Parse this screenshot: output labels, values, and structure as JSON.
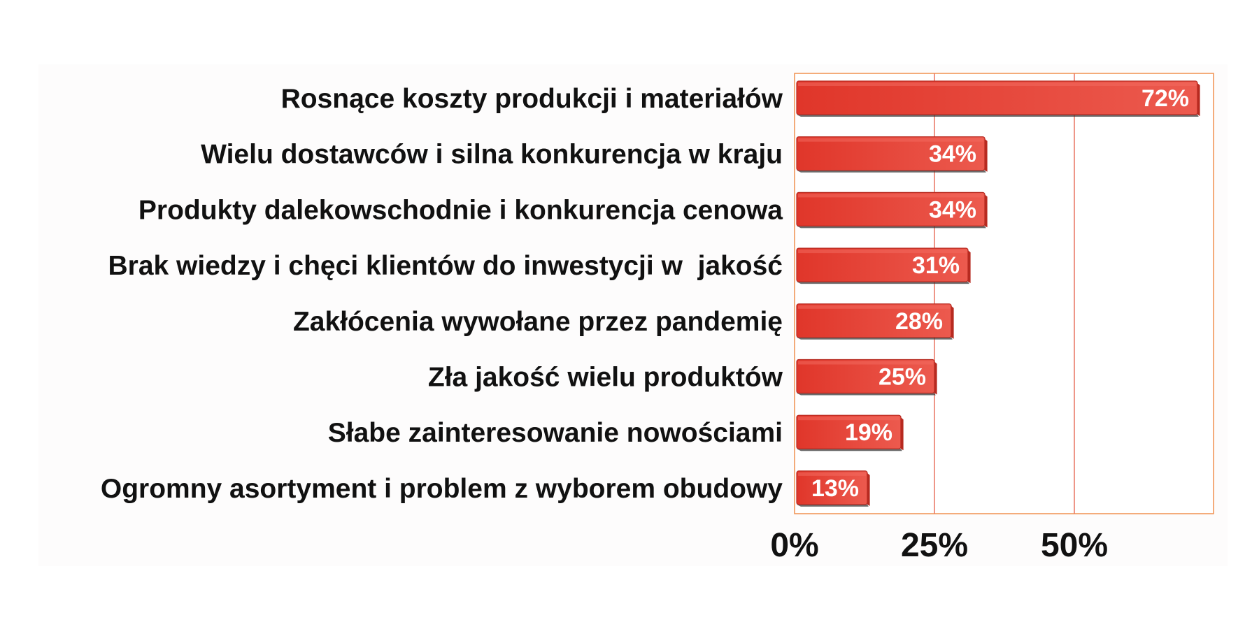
{
  "chart_data": {
    "type": "bar",
    "orientation": "horizontal",
    "categories": [
      "Rosnące koszty produkcji i materiałów",
      "Wielu dostawców i silna konkurencja w kraju",
      "Produkty dalekowschodnie i konkurencja cenowa",
      "Brak wiedzy i chęci klientów do inwestycji w  jakość",
      "Zakłócenia wywołane przez pandemię",
      "Zła jakość wielu produktów",
      "Słabe zainteresowanie nowościami",
      "Ogromny asortyment i problem z wyborem obudowy"
    ],
    "values": [
      72,
      34,
      34,
      31,
      28,
      25,
      19,
      13
    ],
    "value_labels": [
      "72%",
      "34%",
      "34%",
      "31%",
      "28%",
      "25%",
      "19%",
      "13%"
    ],
    "xlim": [
      0,
      75
    ],
    "xticks": [
      0,
      25,
      50
    ],
    "xtick_labels": [
      "0%",
      "25%",
      "50%"
    ],
    "grid": true,
    "legend": "none",
    "title": "",
    "xlabel": "",
    "ylabel": "",
    "colors": {
      "bar": "#e8483b",
      "bar_dark": "#b72a20",
      "bar_light": "#f26a5e",
      "grid": "#e87461",
      "frame": "#f0904f",
      "plot_background": "#fdfcfc",
      "value_text": "#ffffff",
      "label_text": "#111111"
    }
  }
}
